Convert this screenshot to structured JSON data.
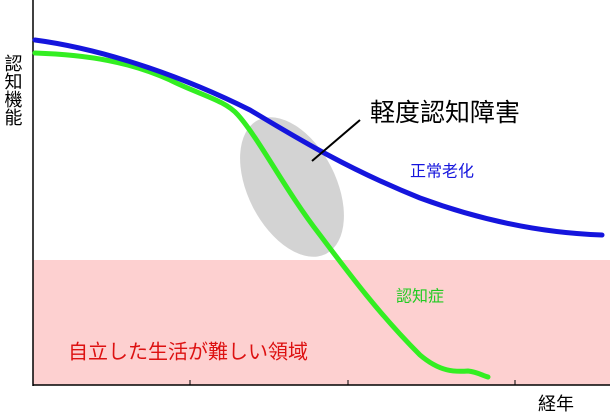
{
  "axes": {
    "y_label": "認知機能",
    "x_label": "経年"
  },
  "annotations": {
    "mci": "軽度認知障害",
    "normal_aging": "正常老化",
    "dementia": "認知症",
    "dependent_zone": "自立した生活が難しい領域"
  }
}
